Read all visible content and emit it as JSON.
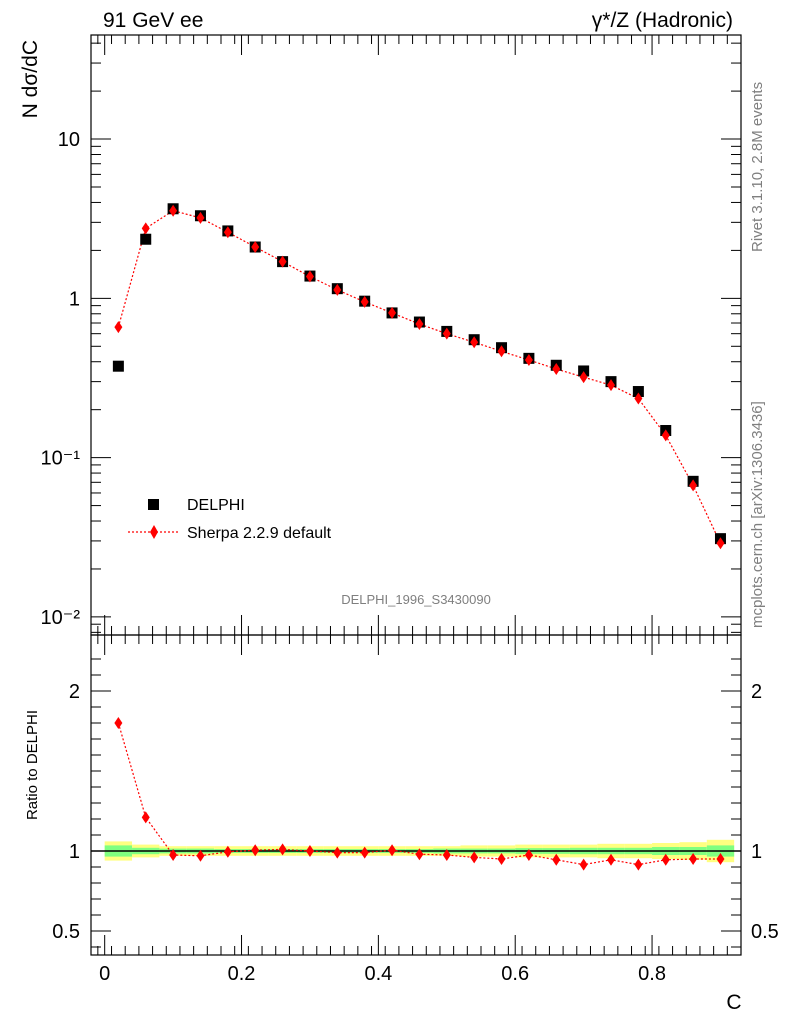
{
  "header": {
    "left": "91 GeV ee",
    "right": "γ*/Z (Hadronic)"
  },
  "side_labels": {
    "rivet": "Rivet 3.1.10,  2.8M events",
    "source": "mcplots.cern.ch [arXiv:1306.3436]"
  },
  "analysis_id": "DELPHI_1996_S3430090",
  "colors": {
    "data": "#000000",
    "mc": "#ff0000",
    "band_outer": "#ffff80",
    "band_inner": "#80ff80"
  },
  "chart_data": [
    {
      "type": "scatter",
      "panel": "main",
      "ylabel": "N dσ/dC",
      "yscale": "log",
      "xlim": [
        -0.02,
        0.93
      ],
      "ylim": [
        0.0077,
        45
      ],
      "y_tick_labels": [
        "10",
        "1",
        "10⁻¹",
        "10⁻²"
      ],
      "legend_position": "lower-left",
      "x": [
        0.02,
        0.06,
        0.1,
        0.14,
        0.18,
        0.22,
        0.26,
        0.3,
        0.34,
        0.38,
        0.42,
        0.46,
        0.5,
        0.54,
        0.58,
        0.62,
        0.66,
        0.7,
        0.74,
        0.78,
        0.82,
        0.86,
        0.9
      ],
      "series": [
        {
          "name": "DELPHI",
          "marker": "square",
          "values": [
            0.375,
            2.35,
            3.65,
            3.3,
            2.65,
            2.1,
            1.7,
            1.38,
            1.15,
            0.96,
            0.81,
            0.71,
            0.62,
            0.55,
            0.49,
            0.42,
            0.38,
            0.35,
            0.3,
            0.26,
            0.148,
            0.071,
            0.031
          ]
        },
        {
          "name": "Sherpa 2.2.9 default",
          "marker": "diamond",
          "line": "dotted",
          "values": [
            0.66,
            2.75,
            3.55,
            3.2,
            2.6,
            2.1,
            1.7,
            1.37,
            1.13,
            0.95,
            0.81,
            0.69,
            0.6,
            0.53,
            0.465,
            0.41,
            0.36,
            0.32,
            0.285,
            0.235,
            0.138,
            0.067,
            0.029
          ]
        }
      ]
    },
    {
      "type": "scatter",
      "panel": "ratio",
      "ylabel": "Ratio to DELPHI",
      "xlabel": "C",
      "xlim": [
        -0.02,
        0.93
      ],
      "ylim": [
        0.35,
        2.35
      ],
      "x_tick_labels": [
        "0",
        "0.2",
        "0.4",
        "0.6",
        "0.8"
      ],
      "y_tick_labels": [
        "0.5",
        "1",
        "2"
      ],
      "x": [
        0.02,
        0.06,
        0.1,
        0.14,
        0.18,
        0.22,
        0.26,
        0.3,
        0.34,
        0.38,
        0.42,
        0.46,
        0.5,
        0.54,
        0.58,
        0.62,
        0.66,
        0.7,
        0.74,
        0.78,
        0.82,
        0.86,
        0.9
      ],
      "series": [
        {
          "name": "Sherpa 2.2.9 default",
          "marker": "diamond",
          "line": "dotted",
          "values": [
            1.8,
            1.21,
            0.975,
            0.97,
            0.995,
            1.005,
            1.01,
            1.0,
            0.99,
            0.99,
            1.005,
            0.98,
            0.975,
            0.96,
            0.95,
            0.975,
            0.945,
            0.915,
            0.945,
            0.915,
            0.945,
            0.95,
            0.95
          ]
        }
      ],
      "band_outer": [
        0.06,
        0.04,
        0.03,
        0.03,
        0.03,
        0.03,
        0.03,
        0.03,
        0.03,
        0.03,
        0.03,
        0.03,
        0.03,
        0.035,
        0.035,
        0.04,
        0.04,
        0.04,
        0.045,
        0.045,
        0.05,
        0.055,
        0.07
      ],
      "band_inner": [
        0.035,
        0.02,
        0.015,
        0.015,
        0.012,
        0.012,
        0.012,
        0.012,
        0.012,
        0.012,
        0.012,
        0.012,
        0.015,
        0.015,
        0.015,
        0.018,
        0.018,
        0.02,
        0.02,
        0.02,
        0.025,
        0.025,
        0.035
      ]
    }
  ]
}
